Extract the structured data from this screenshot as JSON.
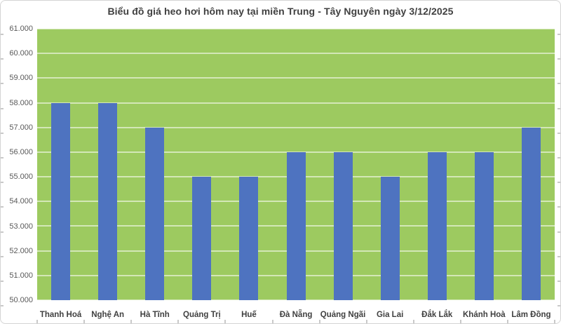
{
  "chart_data": {
    "type": "bar",
    "title": "Biểu đồ giá heo hơi hôm nay tại miền Trung - Tây Nguyên ngày 3/12/2025",
    "categories": [
      "Thanh Hoá",
      "Nghệ An",
      "Hà Tĩnh",
      "Quảng Trị",
      "Huế",
      "Đà Nẵng",
      "Quảng Ngãi",
      "Gia Lai",
      "Đắk Lắk",
      "Khánh Hoà",
      "Lâm Đồng"
    ],
    "values": [
      58000,
      58000,
      57000,
      55000,
      55000,
      56000,
      56000,
      55000,
      56000,
      56000,
      57000
    ],
    "xlabel": "",
    "ylabel": "",
    "ylim": [
      50000,
      61000
    ],
    "ytick_step": 1000,
    "ytick_labels": [
      "50.000",
      "51.000",
      "52.000",
      "53.000",
      "54.000",
      "55.000",
      "56.000",
      "57.000",
      "58.000",
      "59.000",
      "60.000",
      "61.000"
    ],
    "grid": true,
    "legend": "none",
    "colors": {
      "bar": "#4e73c0",
      "plot_bg": "#9dca60",
      "gridline": "rgba(255,255,255,0.55)",
      "title_text": "#404040",
      "x_label_text": "#404040",
      "y_label_text": "#595959",
      "border": "#d4d4d4",
      "edge_ticks": "#c9c9c9"
    }
  }
}
